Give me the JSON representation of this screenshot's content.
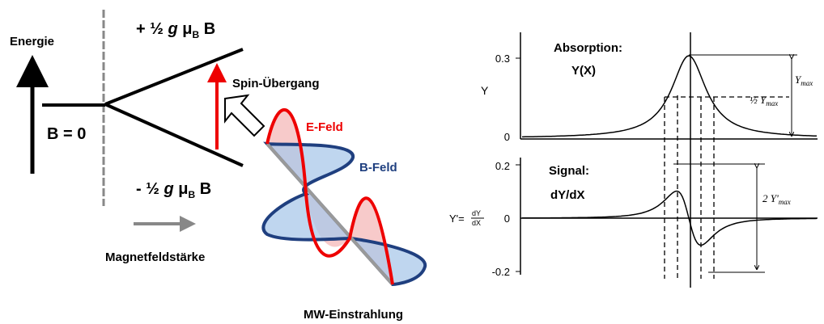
{
  "energy_diagram": {
    "energy_label": "Energie",
    "zero_field": "B = 0",
    "upper_level": {
      "sign": "+ ½ ",
      "g": "g",
      "mu": " μ",
      "mu_sub": "B",
      "field": " B"
    },
    "lower_level": {
      "sign": "- ½ ",
      "g": "g",
      "mu": " μ",
      "mu_sub": "B",
      "field": " B"
    },
    "transition": "Spin-Übergang",
    "field_axis": "Magnetfeldstärke"
  },
  "microwave": {
    "e_field": "E-Feld",
    "b_field": "B-Feld",
    "caption": "MW-Einstrahlung"
  },
  "spectrum": {
    "absorption": {
      "title": "Absorption:",
      "function": "Y(X)",
      "y_label": "Y",
      "ticks": [
        "0.3",
        "0"
      ],
      "half_max": {
        "prefix": "½ ",
        "symbol": "Y",
        "sub": "max"
      },
      "max": {
        "symbol": "Y",
        "sub": "max"
      }
    },
    "signal": {
      "title": "Signal:",
      "function": "dY/dX",
      "y_label": {
        "symbol": "Y'",
        "eq": "=",
        "num": "dY",
        "den": "dX"
      },
      "ticks": [
        "0.2",
        "0",
        "-0.2"
      ],
      "peak_to_peak": {
        "prefix": "2 ",
        "symbol": "Y'",
        "sub": "max"
      }
    }
  }
}
